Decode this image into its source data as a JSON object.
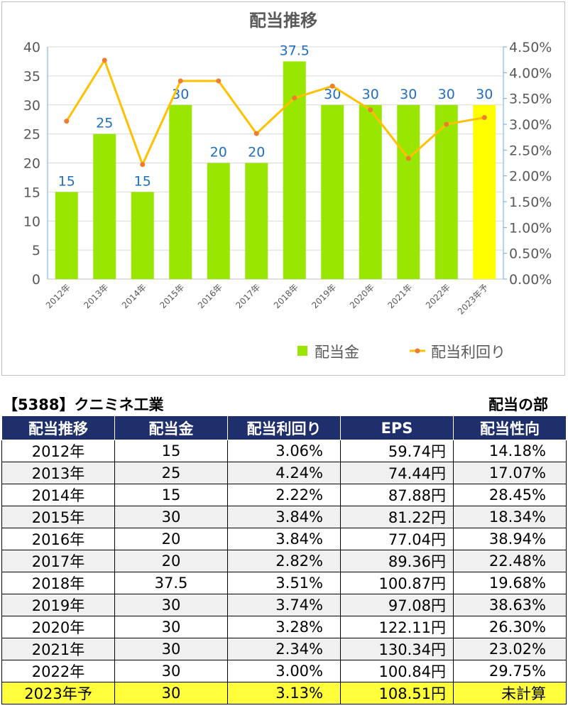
{
  "chart_data": {
    "type": "bar+line",
    "title": "配当推移",
    "categories": [
      "2012年",
      "2013年",
      "2014年",
      "2015年",
      "2016年",
      "2017年",
      "2018年",
      "2019年",
      "2020年",
      "2021年",
      "2022年",
      "2023年予"
    ],
    "series": [
      {
        "name": "配当金",
        "type": "bar",
        "axis": "left",
        "values": [
          15,
          25,
          15,
          30,
          20,
          20,
          37.5,
          30,
          30,
          30,
          30,
          30
        ],
        "data_labels": [
          "15",
          "25",
          "15",
          "30",
          "20",
          "20",
          "37.5",
          "30",
          "30",
          "30",
          "30",
          "30"
        ]
      },
      {
        "name": "配当利回り",
        "type": "line",
        "axis": "right",
        "values": [
          3.06,
          4.24,
          2.22,
          3.84,
          3.84,
          2.82,
          3.51,
          3.74,
          3.28,
          2.34,
          3.0,
          3.13
        ]
      }
    ],
    "y_left": {
      "range": [
        0,
        40
      ],
      "ticks": [
        "0",
        "5",
        "10",
        "15",
        "20",
        "25",
        "30",
        "35",
        "40"
      ]
    },
    "y_right": {
      "range": [
        0,
        4.5
      ],
      "unit": "%",
      "ticks": [
        "0.00%",
        "0.50%",
        "1.00%",
        "1.50%",
        "2.00%",
        "2.50%",
        "3.00%",
        "3.50%",
        "4.00%",
        "4.50%"
      ]
    },
    "grid": true,
    "legend": "bottom-right",
    "colors": {
      "bar": "#99e600",
      "bar_forecast": "#ffff00",
      "line": "#ffc000",
      "marker": "#ed7d31",
      "data_label": "#1f6fbf",
      "axis_text": "#595959",
      "grid": "#d9d9d9"
    }
  },
  "caption_left": "【5388】クニミネ工業",
  "caption_right": "配当の部",
  "table": {
    "header_color": "#1f2f6b",
    "forecast_color": "#ffff3c",
    "headers": [
      "配当推移",
      "配当金",
      "配当利回り",
      "EPS",
      "配当性向"
    ],
    "rows": [
      [
        "2012年",
        "15",
        "3.06%",
        "59.74円",
        "14.18%"
      ],
      [
        "2013年",
        "25",
        "4.24%",
        "74.44円",
        "17.07%"
      ],
      [
        "2014年",
        "15",
        "2.22%",
        "87.88円",
        "28.45%"
      ],
      [
        "2015年",
        "30",
        "3.84%",
        "81.22円",
        "18.34%"
      ],
      [
        "2016年",
        "20",
        "3.84%",
        "77.04円",
        "38.94%"
      ],
      [
        "2017年",
        "20",
        "2.82%",
        "89.36円",
        "22.48%"
      ],
      [
        "2018年",
        "37.5",
        "3.51%",
        "100.87円",
        "19.68%"
      ],
      [
        "2019年",
        "30",
        "3.74%",
        "97.08円",
        "38.63%"
      ],
      [
        "2020年",
        "30",
        "3.28%",
        "122.11円",
        "26.30%"
      ],
      [
        "2021年",
        "30",
        "2.34%",
        "130.34円",
        "23.02%"
      ],
      [
        "2022年",
        "30",
        "3.00%",
        "100.84円",
        "29.75%"
      ],
      [
        "2023年予",
        "30",
        "3.13%",
        "108.51円",
        "未計算"
      ]
    ]
  }
}
